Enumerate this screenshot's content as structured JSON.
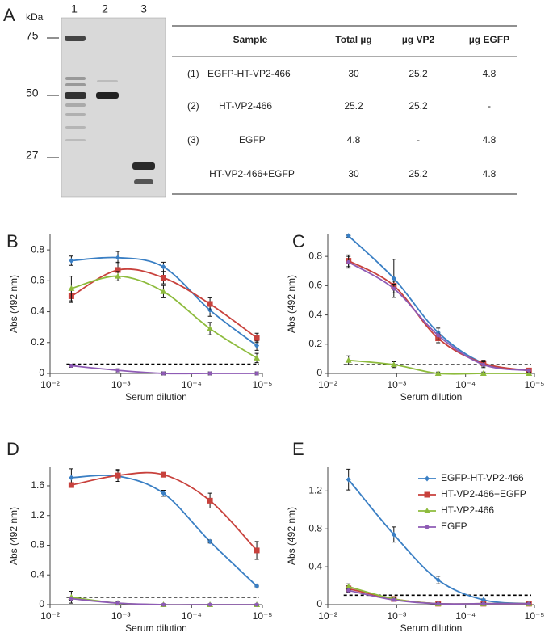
{
  "gel": {
    "label": "A",
    "unit": "kDa",
    "lanes": [
      "1",
      "2",
      "3"
    ],
    "markers": [
      75,
      50,
      27
    ]
  },
  "table": {
    "columns": [
      "Sample",
      "Total µg",
      "µg VP2",
      "µg EGFP"
    ],
    "rows": [
      {
        "index": "(1)",
        "sample": "EGFP-HT-VP2-466",
        "cells": [
          30,
          25.2,
          4.8
        ]
      },
      {
        "index": "(2)",
        "sample": "HT-VP2-466",
        "cells": [
          25.2,
          25.2,
          "-"
        ]
      },
      {
        "index": "(3)",
        "sample": "EGFP",
        "cells": [
          4.8,
          "-",
          4.8
        ]
      },
      {
        "sample": "HT-VP2-466+EGFP",
        "cells": [
          30,
          25.2,
          4.8
        ]
      }
    ]
  },
  "chart_data": [
    {
      "type": "line",
      "label": "B",
      "xlabel": "Serum dilution",
      "ylabel": "Abs (492 nm)",
      "log_x": true,
      "x": [
        0.005,
        0.0011,
        0.00025,
        5.5e-05,
        1.2e-05
      ],
      "xlim": [
        0.01,
        1e-05
      ],
      "xticks": [
        {
          "value": 0.01,
          "label": "10⁻²"
        },
        {
          "value": 0.001,
          "label": "10⁻³"
        },
        {
          "value": 0.0001,
          "label": "10⁻⁴"
        },
        {
          "value": 1e-05,
          "label": "10⁻⁵"
        }
      ],
      "ylim": [
        0,
        0.9
      ],
      "yticks": [
        0,
        0.2,
        0.4,
        0.6,
        0.8
      ],
      "threshold": 0.06,
      "legend": false,
      "series": [
        {
          "name": "EGFP-HT-VP2-466",
          "color": "#3a7fc4",
          "marker": "diamond",
          "values": [
            0.73,
            0.75,
            0.69,
            0.41,
            0.18
          ],
          "errors": [
            0.03,
            0.04,
            0.03,
            0.04,
            0.03
          ]
        },
        {
          "name": "HT-VP2-466+EGFP",
          "color": "#c8413c",
          "marker": "square",
          "values": [
            0.5,
            0.67,
            0.62,
            0.45,
            0.23
          ],
          "errors": [
            0.04,
            0.05,
            0.04,
            0.04,
            0.03
          ]
        },
        {
          "name": "HT-VP2-466",
          "color": "#8dbb3c",
          "marker": "triangle",
          "values": [
            0.55,
            0.63,
            0.53,
            0.29,
            0.1
          ],
          "errors": [
            0.08,
            0.03,
            0.04,
            0.04,
            0.03
          ]
        },
        {
          "name": "EGFP",
          "color": "#8e5bb5",
          "marker": "dot",
          "values": [
            0.05,
            0.02,
            0,
            0,
            0
          ],
          "errors": [
            0.01,
            0.01,
            0.01,
            0.01,
            0.01
          ]
        }
      ]
    },
    {
      "type": "line",
      "label": "C",
      "xlabel": "Serum dilution",
      "ylabel": "Abs (492 nm)",
      "log_x": true,
      "x": [
        0.005,
        0.0011,
        0.00025,
        5.5e-05,
        1.2e-05
      ],
      "xlim": [
        0.01,
        1e-05
      ],
      "xticks": [
        {
          "value": 0.01,
          "label": "10⁻²"
        },
        {
          "value": 0.001,
          "label": "10⁻³"
        },
        {
          "value": 0.0001,
          "label": "10⁻⁴"
        },
        {
          "value": 1e-05,
          "label": "10⁻⁵"
        }
      ],
      "ylim": [
        0,
        0.95
      ],
      "yticks": [
        0,
        0.2,
        0.4,
        0.6,
        0.8
      ],
      "threshold": 0.06,
      "legend": false,
      "series": [
        {
          "name": "EGFP-HT-VP2-466",
          "color": "#3a7fc4",
          "marker": "diamond",
          "values": [
            0.94,
            0.65,
            0.28,
            0.07,
            0.02
          ],
          "errors": [
            0.01,
            0.13,
            0.03,
            0.02,
            0.01
          ]
        },
        {
          "name": "HT-VP2-466+EGFP",
          "color": "#c8413c",
          "marker": "square",
          "values": [
            0.77,
            0.6,
            0.24,
            0.07,
            0.02
          ],
          "errors": [
            0.04,
            0.03,
            0.03,
            0.02,
            0.01
          ]
        },
        {
          "name": "HT-VP2-466",
          "color": "#8dbb3c",
          "marker": "triangle",
          "values": [
            0.09,
            0.06,
            0,
            0,
            0
          ],
          "errors": [
            0.03,
            0.02,
            0.01,
            0.01,
            0.01
          ]
        },
        {
          "name": "EGFP",
          "color": "#8e5bb5",
          "marker": "dot",
          "values": [
            0.76,
            0.58,
            0.26,
            0.06,
            0.02
          ],
          "errors": [
            0.04,
            0.03,
            0.03,
            0.02,
            0.01
          ]
        }
      ]
    },
    {
      "type": "line",
      "label": "D",
      "xlabel": "Serum dilution",
      "ylabel": "Abs (492 nm)",
      "log_x": true,
      "x": [
        0.005,
        0.0011,
        0.00025,
        5.5e-05,
        1.2e-05
      ],
      "xlim": [
        0.01,
        1e-05
      ],
      "xticks": [
        {
          "value": 0.01,
          "label": "10⁻²"
        },
        {
          "value": 0.001,
          "label": "10⁻³"
        },
        {
          "value": 0.0001,
          "label": "10⁻⁴"
        },
        {
          "value": 1e-05,
          "label": "10⁻⁵"
        }
      ],
      "ylim": [
        0,
        1.85
      ],
      "yticks": [
        0,
        0.4,
        0.8,
        1.2,
        1.6
      ],
      "threshold": 0.1,
      "legend": false,
      "series": [
        {
          "name": "EGFP-HT-VP2-466",
          "color": "#3a7fc4",
          "marker": "diamond",
          "values": [
            1.71,
            1.73,
            1.5,
            0.85,
            0.25
          ],
          "errors": [
            0.12,
            0.07,
            0.04,
            0.02,
            0.01
          ]
        },
        {
          "name": "HT-VP2-466+EGFP",
          "color": "#c8413c",
          "marker": "square",
          "values": [
            1.61,
            1.74,
            1.75,
            1.4,
            0.73
          ],
          "errors": [
            0.03,
            0.08,
            0.03,
            0.1,
            0.12
          ]
        },
        {
          "name": "HT-VP2-466",
          "color": "#8dbb3c",
          "marker": "triangle",
          "values": [
            0.1,
            0.02,
            0,
            0,
            0
          ],
          "errors": [
            0.08,
            0.02,
            0.01,
            0.01,
            0.01
          ]
        },
        {
          "name": "EGFP",
          "color": "#8e5bb5",
          "marker": "dot",
          "values": [
            0.08,
            0.02,
            0,
            0,
            0
          ],
          "errors": [
            0.02,
            0.02,
            0.01,
            0.01,
            0.01
          ]
        }
      ]
    },
    {
      "type": "line",
      "label": "E",
      "xlabel": "Serum dilution",
      "ylabel": "Abs (492 nm)",
      "log_x": true,
      "x": [
        0.005,
        0.0011,
        0.00025,
        5.5e-05,
        1.2e-05
      ],
      "xlim": [
        0.01,
        1e-05
      ],
      "xticks": [
        {
          "value": 0.01,
          "label": "10⁻²"
        },
        {
          "value": 0.001,
          "label": "10⁻³"
        },
        {
          "value": 0.0001,
          "label": "10⁻⁴"
        },
        {
          "value": 1e-05,
          "label": "10⁻⁵"
        }
      ],
      "ylim": [
        0,
        1.45
      ],
      "yticks": [
        0,
        0.4,
        0.8,
        1.2
      ],
      "threshold": 0.1,
      "legend": true,
      "series": [
        {
          "name": "EGFP-HT-VP2-466",
          "color": "#3a7fc4",
          "marker": "diamond",
          "values": [
            1.32,
            0.74,
            0.26,
            0.05,
            0.01
          ],
          "errors": [
            0.11,
            0.08,
            0.04,
            0.01,
            0.01
          ]
        },
        {
          "name": "HT-VP2-466+EGFP",
          "color": "#c8413c",
          "marker": "square",
          "values": [
            0.17,
            0.06,
            0.01,
            0.01,
            0.01
          ],
          "errors": [
            0.03,
            0.01,
            0.01,
            0.01,
            0.01
          ]
        },
        {
          "name": "HT-VP2-466",
          "color": "#8dbb3c",
          "marker": "triangle",
          "values": [
            0.19,
            0.06,
            0.01,
            0.01,
            0.01
          ],
          "errors": [
            0.03,
            0.01,
            0.01,
            0.01,
            0.01
          ]
        },
        {
          "name": "EGFP",
          "color": "#8e5bb5",
          "marker": "dot",
          "values": [
            0.15,
            0.05,
            0.01,
            0.01,
            0.01
          ],
          "errors": [
            0.02,
            0.01,
            0.01,
            0.01,
            0.01
          ]
        }
      ]
    }
  ]
}
